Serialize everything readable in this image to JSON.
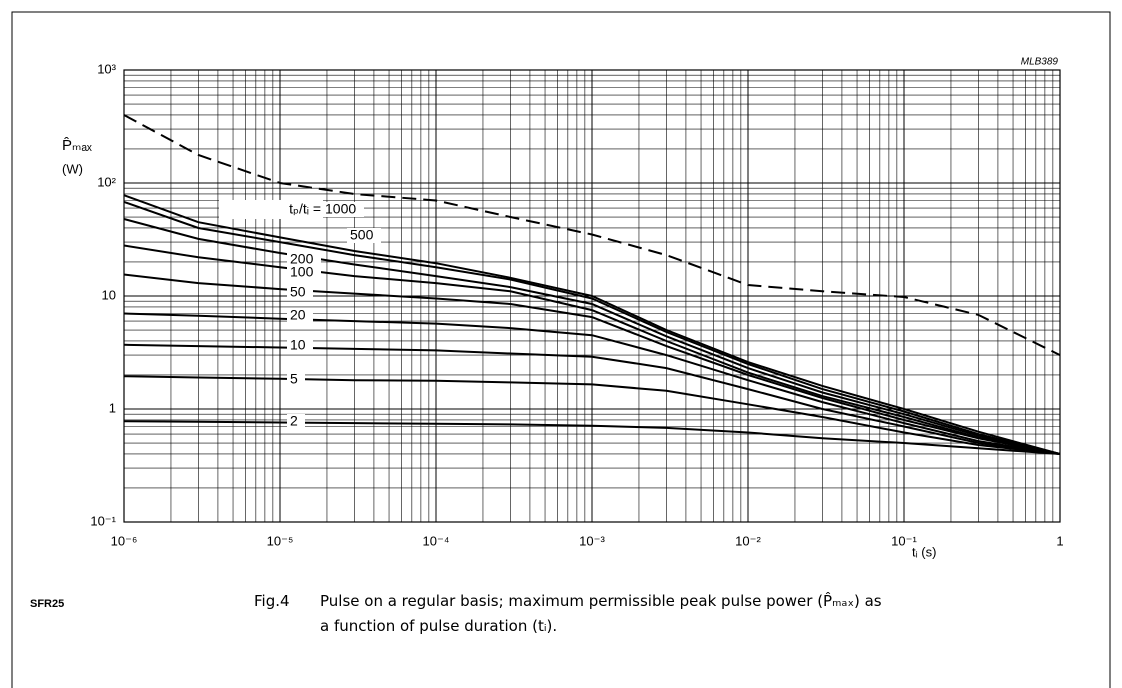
{
  "chart_data": {
    "type": "line",
    "code": "MLB389",
    "part": "SFR25",
    "ylabel": [
      "P̂ₘₐₓ",
      "(W)"
    ],
    "xlabel": "tᵢ  (s)",
    "annotation": "tₚ/tᵢ =",
    "caption_fig": "Fig.4",
    "caption": [
      "Pulse on a regular basis; maximum permissible peak pulse power (P̂ₘₐₓ) as",
      "a function of pulse duration (tᵢ)."
    ],
    "xscale": "log",
    "yscale": "log",
    "grid": true,
    "xlim": [
      1e-06,
      1
    ],
    "ylim": [
      0.1,
      1000
    ],
    "xticks": [
      {
        "value": 1e-06,
        "label": "10⁻⁶"
      },
      {
        "value": 1e-05,
        "label": "10⁻⁵"
      },
      {
        "value": 0.0001,
        "label": "10⁻⁴"
      },
      {
        "value": 0.001,
        "label": "10⁻³"
      },
      {
        "value": 0.01,
        "label": "10⁻²"
      },
      {
        "value": 0.1,
        "label": "10⁻¹"
      },
      1
    ],
    "yticks": [
      {
        "value": 0.1,
        "label": "10⁻¹"
      },
      1,
      10,
      {
        "value": 100,
        "label": "10²"
      },
      {
        "value": 1000,
        "label": "10³"
      }
    ],
    "x": [
      1e-06,
      3e-06,
      1e-05,
      3e-05,
      0.0001,
      0.0003,
      0.001,
      0.003,
      0.01,
      0.03,
      0.1,
      0.3,
      1
    ],
    "series": [
      {
        "dash": true,
        "color": "#000",
        "values": [
          400,
          177,
          100,
          80,
          70,
          50,
          35,
          23,
          12.5,
          11,
          9.8,
          6.8,
          3.0
        ]
      },
      {
        "name": "1000",
        "color": "#000",
        "values": [
          78,
          45,
          33,
          25,
          19.5,
          14.5,
          10,
          5,
          2.6,
          1.6,
          1.0,
          0.63,
          0.4
        ]
      },
      {
        "name": "500",
        "color": "#000",
        "values": [
          68,
          40,
          30,
          23,
          18,
          14,
          9.5,
          4.8,
          2.5,
          1.5,
          0.95,
          0.6,
          0.4
        ]
      },
      {
        "name": "200",
        "color": "#000",
        "values": [
          48,
          32,
          24,
          19,
          15,
          12,
          8.5,
          4.4,
          2.3,
          1.4,
          0.9,
          0.58,
          0.4
        ]
      },
      {
        "name": "100",
        "color": "#000",
        "values": [
          28,
          22,
          18,
          15,
          13,
          11,
          7.5,
          4.0,
          2.1,
          1.3,
          0.85,
          0.56,
          0.4
        ]
      },
      {
        "name": "50",
        "color": "#000",
        "values": [
          15.5,
          13,
          11.5,
          10.5,
          9.5,
          8.5,
          6.5,
          3.6,
          2.0,
          1.25,
          0.8,
          0.55,
          0.4
        ]
      },
      {
        "name": "20",
        "color": "#000",
        "values": [
          7.0,
          6.7,
          6.3,
          6.0,
          5.7,
          5.2,
          4.5,
          3.0,
          1.8,
          1.15,
          0.75,
          0.52,
          0.4
        ]
      },
      {
        "name": "10",
        "color": "#000",
        "values": [
          3.7,
          3.6,
          3.5,
          3.4,
          3.3,
          3.1,
          2.9,
          2.3,
          1.5,
          1.0,
          0.7,
          0.5,
          0.4
        ]
      },
      {
        "name": "5",
        "color": "#000",
        "values": [
          1.95,
          1.9,
          1.85,
          1.8,
          1.78,
          1.72,
          1.65,
          1.45,
          1.1,
          0.85,
          0.62,
          0.48,
          0.4
        ]
      },
      {
        "name": "2",
        "color": "#000",
        "values": [
          0.78,
          0.77,
          0.76,
          0.75,
          0.74,
          0.73,
          0.71,
          0.68,
          0.62,
          0.55,
          0.5,
          0.45,
          0.4
        ]
      }
    ]
  }
}
